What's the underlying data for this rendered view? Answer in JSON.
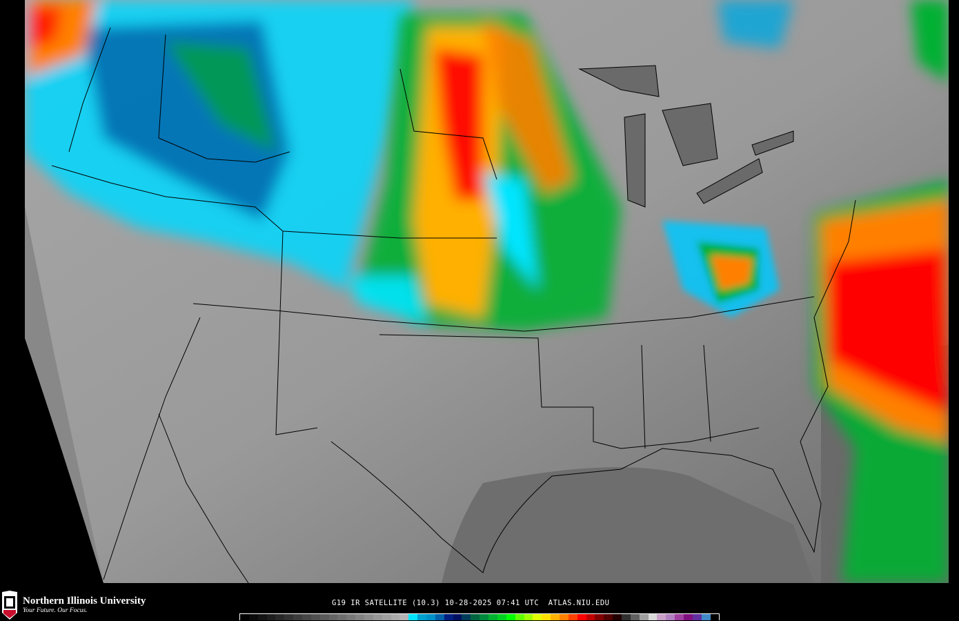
{
  "map": {
    "projection_region": "Contiguous United States",
    "product": "IR satellite imagery"
  },
  "footer": {
    "logo_text": "NIU",
    "university_name": "Northern Illinois University",
    "tagline": "Your Future. Our Focus.",
    "caption": "G19 IR SATELLITE (10.3) 10-28-2025 07:41 UTC  ATLAS.NIU.EDU"
  },
  "colorbar": {
    "colors": [
      "#000000",
      "#0a0a0a",
      "#141414",
      "#1e1e1e",
      "#282828",
      "#323232",
      "#3c3c3c",
      "#464646",
      "#505050",
      "#5a5a5a",
      "#646464",
      "#6e6e6e",
      "#787878",
      "#828282",
      "#8c8c8c",
      "#969696",
      "#a0a0a0",
      "#aaaaaa",
      "#b4b4b4",
      "#00e5ff",
      "#00a0d0",
      "#0090c8",
      "#0060a8",
      "#001e80",
      "#001060",
      "#003c5a",
      "#006440",
      "#00883c",
      "#00b030",
      "#00d020",
      "#00ff00",
      "#60ff00",
      "#a0ff00",
      "#e0ff00",
      "#ffe000",
      "#ffb000",
      "#ff8000",
      "#ff4000",
      "#ff0000",
      "#c00000",
      "#800000",
      "#500000",
      "#200000",
      "#303030",
      "#606060",
      "#a0a0a0",
      "#d8d8d8",
      "#c8a0c8",
      "#b080c0",
      "#a040a0",
      "#801080",
      "#6030a0",
      "#4088c8",
      "#000000"
    ]
  }
}
